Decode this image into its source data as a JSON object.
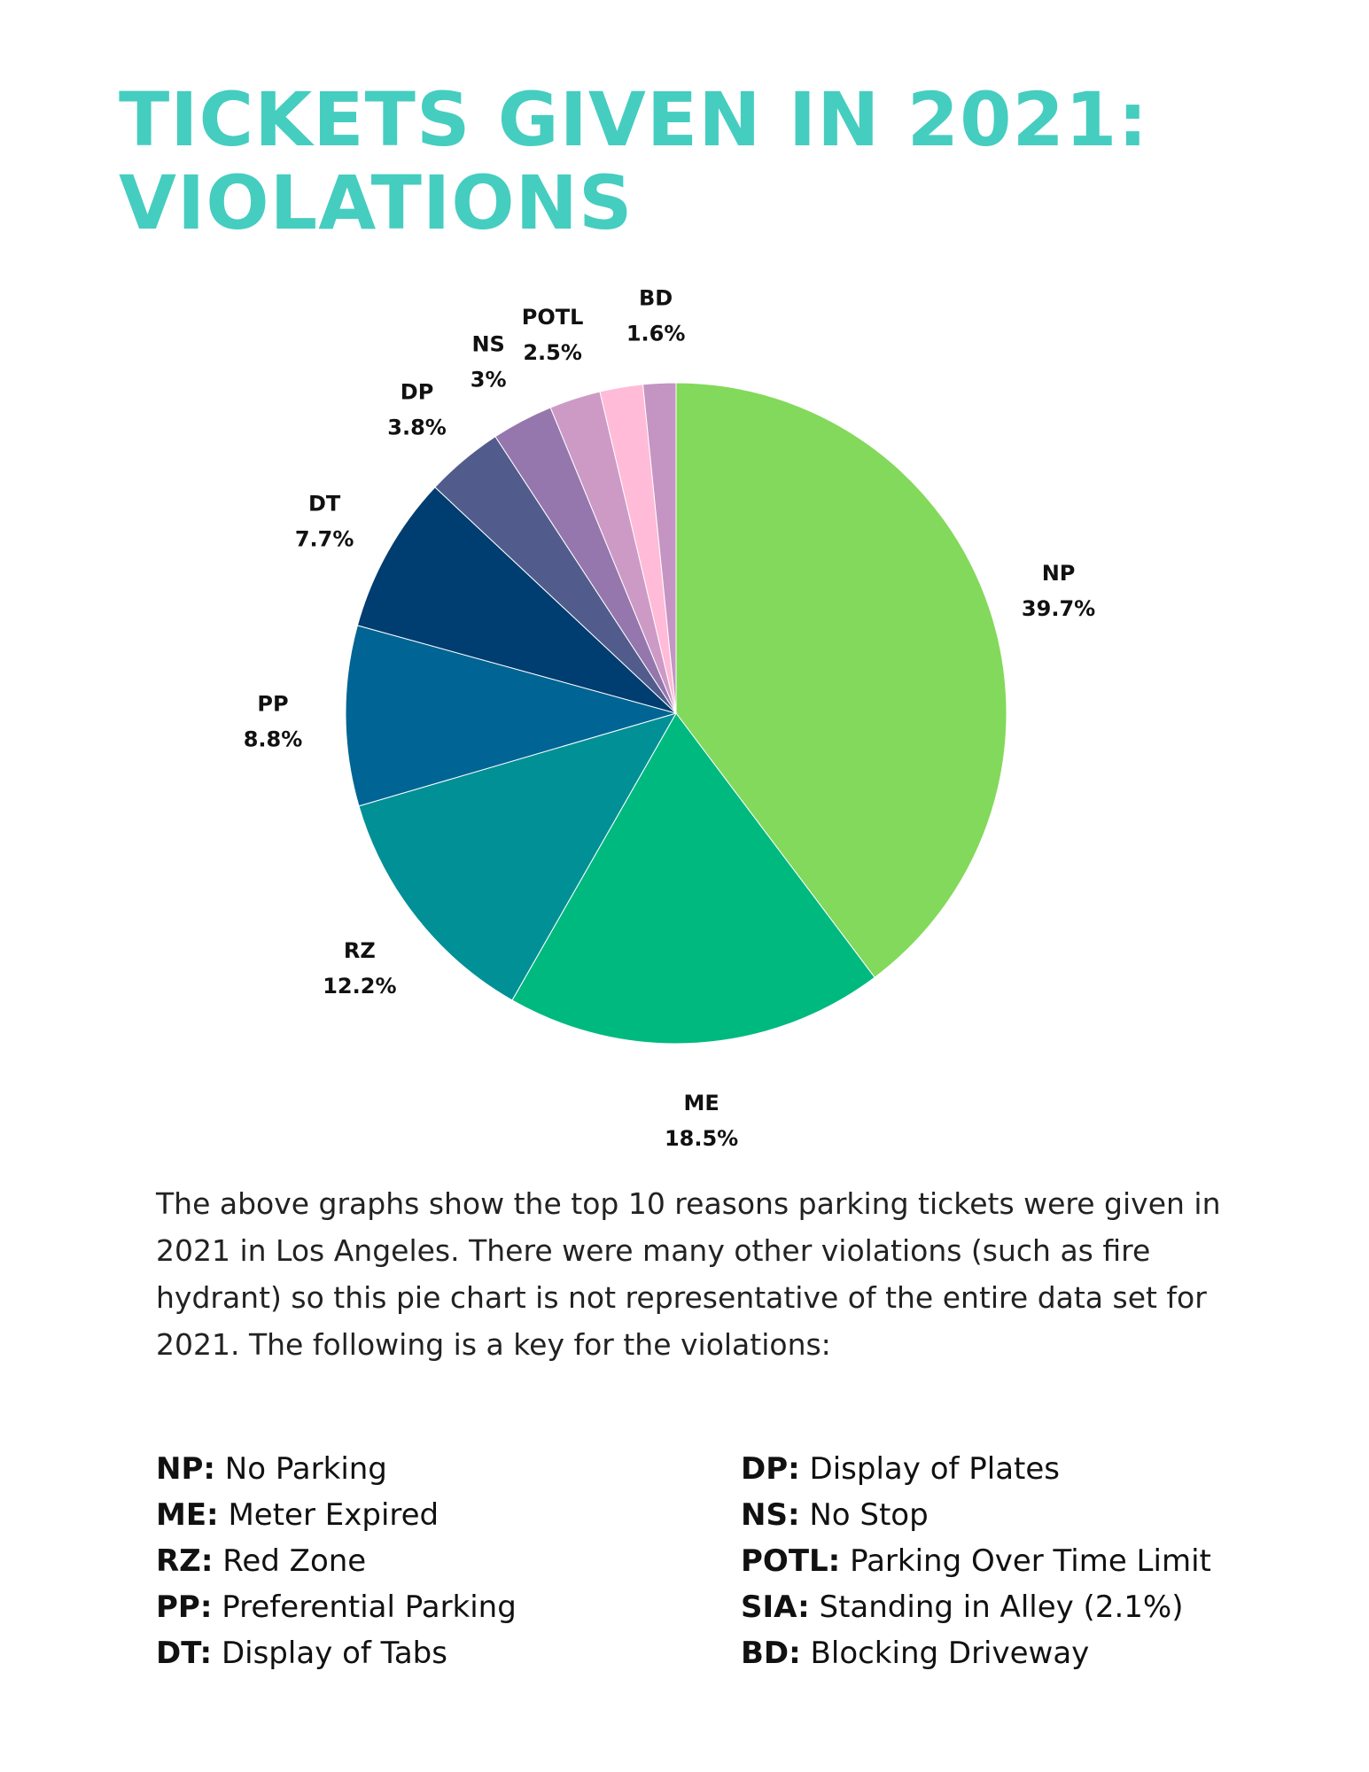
{
  "title_lines": [
    "TICKETS GIVEN IN 2021:",
    "VIOLATIONS"
  ],
  "colors": {
    "title": "#45cdc0",
    "slices": [
      "#83d95b",
      "#00b97f",
      "#009096",
      "#006594",
      "#003d70",
      "#525c8c",
      "#9577ad",
      "#cd9ac6",
      "#ffbbd8",
      "#c495c2"
    ]
  },
  "chart_data": {
    "type": "pie",
    "title": "TICKETS GIVEN IN 2021: VIOLATIONS",
    "slices": [
      {
        "label": "NP",
        "value": 39.7,
        "display": "39.7%"
      },
      {
        "label": "ME",
        "value": 18.5,
        "display": "18.5%"
      },
      {
        "label": "RZ",
        "value": 12.2,
        "display": "12.2%"
      },
      {
        "label": "PP",
        "value": 8.8,
        "display": "8.8%"
      },
      {
        "label": "DT",
        "value": 7.7,
        "display": "7.7%"
      },
      {
        "label": "DP",
        "value": 3.8,
        "display": "3.8%"
      },
      {
        "label": "NS",
        "value": 3,
        "display": "3%"
      },
      {
        "label": "POTL",
        "value": 2.5,
        "display": "2.5%"
      },
      {
        "label": "",
        "value": 2.1,
        "display": ""
      },
      {
        "label": "BD",
        "value": 1.6,
        "display": "1.6%"
      }
    ],
    "start_angle": "12 o'clock",
    "direction": "clockwise",
    "legend": "none"
  },
  "description": "The above graphs show the top 10 reasons parking tickets were given in 2021 in Los Angeles. There were many other violations (such as fire hydrant) so this pie chart is not representative of the entire data set for 2021. The following is a key for the violations:",
  "key_left": [
    {
      "abbr": "NP:",
      "text": " No Parking"
    },
    {
      "abbr": "ME:",
      "text": " Meter Expired"
    },
    {
      "abbr": "RZ:",
      "text": " Red Zone"
    },
    {
      "abbr": "PP:",
      "text": " Preferential Parking"
    },
    {
      "abbr": "DT:",
      "text": " Display of Tabs"
    }
  ],
  "key_right": [
    {
      "abbr": "DP:",
      "text": " Display of Plates"
    },
    {
      "abbr": "NS:",
      "text": " No Stop"
    },
    {
      "abbr": "POTL:",
      "text": " Parking Over Time Limit"
    },
    {
      "abbr": "SIA:",
      "text": " Standing in Alley (2.1%)"
    },
    {
      "abbr": "BD:",
      "text": " Blocking Driveway"
    }
  ]
}
